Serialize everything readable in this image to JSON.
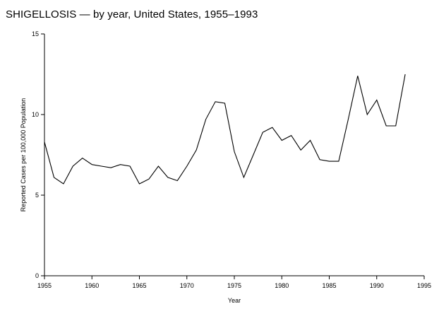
{
  "chart_data": {
    "type": "line",
    "title": "SHIGELLOSIS — by year, United States, 1955–1993",
    "xlabel": "Year",
    "ylabel": "Reported Cases per 100,000 Population",
    "xlim": [
      1955,
      1995
    ],
    "ylim": [
      0,
      15
    ],
    "xticks": [
      1955,
      1960,
      1965,
      1970,
      1975,
      1980,
      1985,
      1990,
      1995
    ],
    "yticks": [
      0,
      5,
      10,
      15
    ],
    "grid": false,
    "legend": "none",
    "line_color": "#000000",
    "series": [
      {
        "x": [
          1955,
          1956,
          1957,
          1958,
          1959,
          1960,
          1961,
          1962,
          1963,
          1964,
          1965,
          1966,
          1967,
          1968,
          1969,
          1970,
          1971,
          1972,
          1973,
          1974,
          1975,
          1976,
          1977,
          1978,
          1979,
          1980,
          1981,
          1982,
          1983,
          1984,
          1985,
          1986,
          1987,
          1988,
          1989,
          1990,
          1991,
          1992,
          1993
        ],
        "values": [
          8.3,
          6.1,
          5.7,
          6.8,
          7.3,
          6.9,
          6.8,
          6.7,
          6.9,
          6.8,
          5.7,
          6.0,
          6.8,
          6.1,
          5.9,
          6.8,
          7.8,
          9.7,
          10.8,
          10.7,
          7.7,
          6.1,
          7.5,
          8.9,
          9.2,
          8.4,
          8.7,
          7.8,
          8.4,
          7.2,
          7.1,
          7.1,
          9.7,
          12.4,
          10.0,
          10.9,
          9.3,
          9.3,
          12.5
        ]
      }
    ]
  }
}
